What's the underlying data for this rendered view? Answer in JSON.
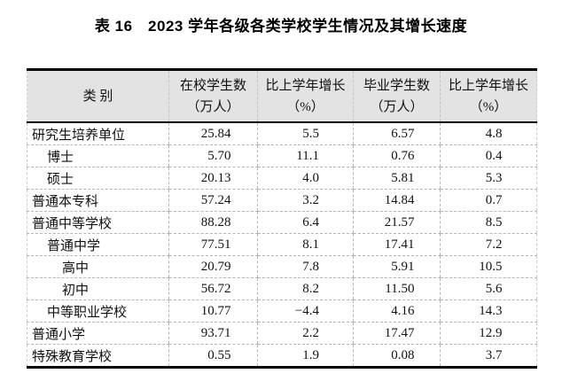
{
  "title": "表 16　2023 学年各级各类学校学生情况及其增长速度",
  "table": {
    "headers": {
      "category": "类 别",
      "enrolled_line1": "在校学生数",
      "enrolled_line2": "（万人）",
      "enrolled_growth_line1": "比上学年增长",
      "enrolled_growth_line2": "（%）",
      "graduates_line1": "毕业学生数",
      "graduates_line2": "（万人）",
      "graduates_growth_line1": "比上学年增长",
      "graduates_growth_line2": "（%）"
    },
    "rows": [
      {
        "label": "研究生培养单位",
        "indent": 0,
        "enrolled": "25.84",
        "enrolled_growth": "5.5",
        "graduates": "6.57",
        "graduates_growth": "4.8"
      },
      {
        "label": "博士",
        "indent": 1,
        "enrolled": "5.70",
        "enrolled_growth": "11.1",
        "graduates": "0.76",
        "graduates_growth": "0.4"
      },
      {
        "label": "硕士",
        "indent": 1,
        "enrolled": "20.13",
        "enrolled_growth": "4.0",
        "graduates": "5.81",
        "graduates_growth": "5.3"
      },
      {
        "label": "普通本专科",
        "indent": 0,
        "enrolled": "57.24",
        "enrolled_growth": "3.2",
        "graduates": "14.84",
        "graduates_growth": "0.7"
      },
      {
        "label": "普通中等学校",
        "indent": 0,
        "enrolled": "88.28",
        "enrolled_growth": "6.4",
        "graduates": "21.57",
        "graduates_growth": "8.5"
      },
      {
        "label": "普通中学",
        "indent": 1,
        "enrolled": "77.51",
        "enrolled_growth": "8.1",
        "graduates": "17.41",
        "graduates_growth": "7.2"
      },
      {
        "label": "高中",
        "indent": 2,
        "enrolled": "20.79",
        "enrolled_growth": "7.8",
        "graduates": "5.91",
        "graduates_growth": "10.5"
      },
      {
        "label": "初中",
        "indent": 2,
        "enrolled": "56.72",
        "enrolled_growth": "8.2",
        "graduates": "11.50",
        "graduates_growth": "5.6"
      },
      {
        "label": "中等职业学校",
        "indent": 1,
        "enrolled": "10.77",
        "enrolled_growth": "−4.4",
        "graduates": "4.16",
        "graduates_growth": "14.3"
      },
      {
        "label": "普通小学",
        "indent": 0,
        "enrolled": "93.71",
        "enrolled_growth": "2.2",
        "graduates": "17.47",
        "graduates_growth": "12.9"
      },
      {
        "label": "特殊教育学校",
        "indent": 0,
        "enrolled": "0.55",
        "enrolled_growth": "1.9",
        "graduates": "0.08",
        "graduates_growth": "3.7"
      }
    ],
    "colors": {
      "header_background": "#e3e3e3",
      "rule_color": "#000000",
      "grid_dash_color": "#b5b5b5"
    }
  }
}
